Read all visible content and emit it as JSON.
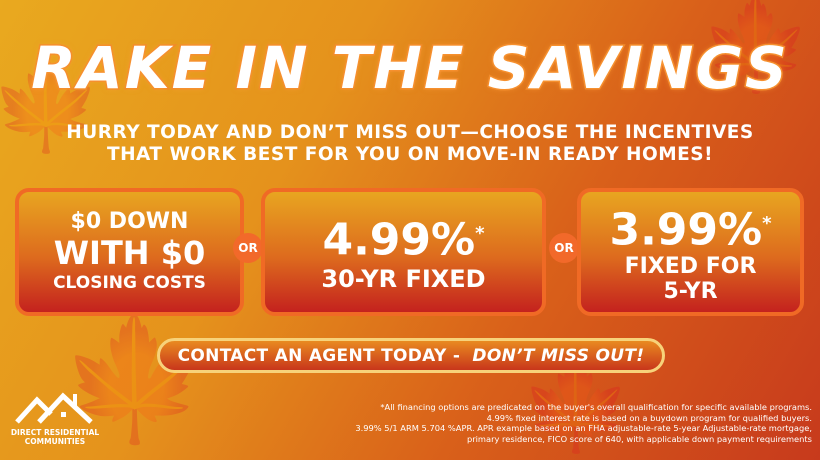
{
  "headline": "RAKE IN THE SAVINGS",
  "subheadline": [
    "HURRY TODAY AND DON’T MISS OUT—CHOOSE THE INCENTIVES",
    "THAT WORK BEST FOR YOU ON MOVE-IN READY HOMES!"
  ],
  "offers": [
    {
      "line1": "$0 DOWN",
      "line2": "WITH $0",
      "line3": "CLOSING COSTS"
    },
    {
      "rate": "4.99%",
      "asterisk": "*",
      "term": "30-YR FIXED"
    },
    {
      "rate": "3.99%",
      "asterisk": "*",
      "term1": "FIXED FOR",
      "term2": "5-YR"
    }
  ],
  "separator": "OR",
  "cta": {
    "label": "CONTACT AN AGENT TODAY - ",
    "emphasis": "DON’T MISS OUT!"
  },
  "disclaimer": [
    "*All financing options are predicated on the buyer's overall qualification for specific available programs.",
    "4.99% fixed interest rate is based on a buydown program for qualified buyers.",
    "3.99% 5/1 ARM 5.704 %APR. APR example based on an FHA adjustable-rate 5-year Adjustable-rate mortgage,",
    "primary residence, FICO score of 640, with applicable down payment requirements"
  ],
  "logo": {
    "line1": "DIRECT RESIDENTIAL",
    "line2": "COMMUNITIES"
  },
  "colors": {
    "gold": "#e9a91f",
    "orange": "#f06a25",
    "red": "#c4221e"
  }
}
